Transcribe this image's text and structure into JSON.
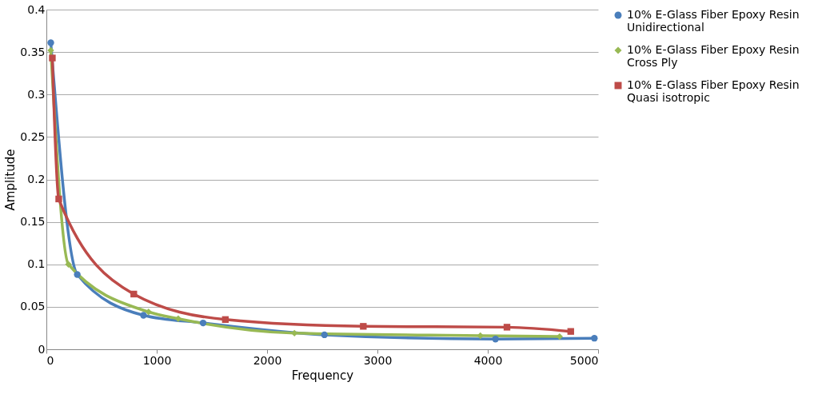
{
  "chart_data": {
    "type": "line",
    "xlabel": "Frequency",
    "ylabel": "Amplitude",
    "xlim": [
      0,
      5000
    ],
    "ylim": [
      0,
      0.4
    ],
    "xticks": [
      0,
      1000,
      2000,
      3000,
      4000,
      5000
    ],
    "yticks": [
      0,
      0.05,
      0.1,
      0.15,
      0.2,
      0.25,
      0.3,
      0.35,
      0.4
    ],
    "grid": "y",
    "legend": "right",
    "line_style": "solid",
    "series": [
      {
        "name": "10% E-Glass Fiber Epoxy Resin Unidirectional",
        "color": "#4a7ebb",
        "marker": "circle",
        "x": [
          40,
          280,
          880,
          1420,
          2520,
          4070,
          4966
        ],
        "values": [
          0.361,
          0.088,
          0.04,
          0.031,
          0.017,
          0.012,
          0.013
        ]
      },
      {
        "name": "10% E-Glass Fiber Epoxy Resin Cross Ply",
        "color": "#98b954",
        "marker": "diamond",
        "x": [
          40,
          200,
          926,
          1195,
          2248,
          3933,
          4651
        ],
        "values": [
          0.352,
          0.1,
          0.044,
          0.036,
          0.019,
          0.016,
          0.015
        ]
      },
      {
        "name": "10% E-Glass Fiber Epoxy Resin Quasi isotropic",
        "color": "#be4b48",
        "marker": "square",
        "x": [
          54,
          112,
          792,
          1622,
          2872,
          4174,
          4752
        ],
        "values": [
          0.343,
          0.177,
          0.065,
          0.035,
          0.027,
          0.026,
          0.021
        ]
      }
    ]
  }
}
